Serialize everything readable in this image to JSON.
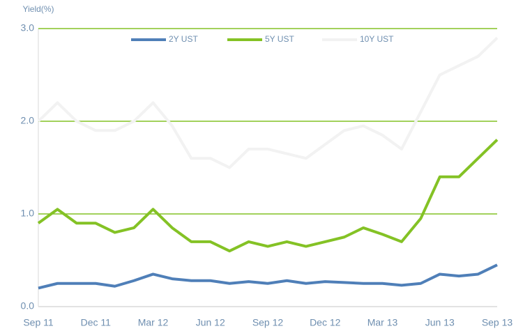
{
  "chart_data": {
    "type": "line",
    "ylabel": "Yield(%)",
    "categories": [
      "Sep 11",
      null,
      null,
      "Dec 11",
      null,
      null,
      "Mar 12",
      null,
      null,
      "Jun 12",
      null,
      null,
      "Sep 12",
      null,
      null,
      "Dec 12",
      null,
      null,
      "Mar 13",
      null,
      null,
      "Jun 13",
      null,
      null,
      "Sep 13"
    ],
    "series": [
      {
        "name": "2Y UST",
        "color": "#4f7fb8",
        "values": [
          0.2,
          0.25,
          0.25,
          0.25,
          0.22,
          0.28,
          0.35,
          0.3,
          0.28,
          0.28,
          0.25,
          0.27,
          0.25,
          0.28,
          0.25,
          0.27,
          0.26,
          0.25,
          0.25,
          0.23,
          0.25,
          0.35,
          0.33,
          0.35,
          0.45
        ]
      },
      {
        "name": "5Y UST",
        "color": "#84c225",
        "values": [
          0.9,
          1.05,
          0.9,
          0.9,
          0.8,
          0.85,
          1.05,
          0.85,
          0.7,
          0.7,
          0.6,
          0.7,
          0.65,
          0.7,
          0.65,
          0.7,
          0.75,
          0.85,
          0.78,
          0.7,
          0.95,
          1.4,
          1.4,
          1.6,
          1.8
        ]
      },
      {
        "name": "10Y UST",
        "color": "#f2f2f2",
        "values": [
          2.0,
          2.2,
          2.0,
          1.9,
          1.9,
          2.0,
          2.2,
          1.95,
          1.6,
          1.6,
          1.5,
          1.7,
          1.7,
          1.65,
          1.6,
          1.75,
          1.9,
          1.95,
          1.85,
          1.7,
          2.1,
          2.5,
          2.6,
          2.7,
          2.9
        ]
      }
    ],
    "ylim": [
      0,
      3
    ],
    "yticks": [
      {
        "value": 0,
        "label": "0.0"
      },
      {
        "value": 1,
        "label": "1.0"
      },
      {
        "value": 2,
        "label": "2.0"
      },
      {
        "value": 3,
        "label": "3.0"
      }
    ],
    "grid": true,
    "grid_color": "#84c225",
    "legend": "top"
  }
}
